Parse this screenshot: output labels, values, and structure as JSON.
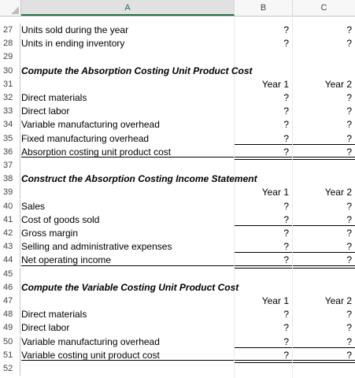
{
  "columns": {
    "a": "A",
    "b": "B",
    "c": "C"
  },
  "rows": [
    {
      "num": "27",
      "a": "Units sold during the year",
      "b": "?",
      "c": "?",
      "bold": false
    },
    {
      "num": "28",
      "a": "Units in ending inventory",
      "b": "?",
      "c": "?",
      "bold": false
    },
    {
      "num": "29",
      "a": "",
      "b": "",
      "c": "",
      "bold": false
    },
    {
      "num": "30",
      "a": "Compute the Absorption Costing Unit Product Cost",
      "b": "",
      "c": "",
      "bold": true
    },
    {
      "num": "31",
      "a": "",
      "b": "Year 1",
      "c": "Year 2",
      "bold": false
    },
    {
      "num": "32",
      "a": "Direct materials",
      "b": "?",
      "c": "?",
      "bold": false
    },
    {
      "num": "33",
      "a": "Direct labor",
      "b": "?",
      "c": "?",
      "bold": false
    },
    {
      "num": "34",
      "a": "Variable manufacturing overhead",
      "b": "?",
      "c": "?",
      "bold": false
    },
    {
      "num": "35",
      "a": "Fixed manufacturing overhead",
      "b": "?",
      "c": "?",
      "bold": false
    },
    {
      "num": "36",
      "a": "Absorption costing unit product cost",
      "b": "?",
      "c": "?",
      "bold": false
    },
    {
      "num": "37",
      "a": "",
      "b": "",
      "c": "",
      "bold": false
    },
    {
      "num": "38",
      "a": "Construct the Absorption Costing Income Statement",
      "b": "",
      "c": "",
      "bold": true
    },
    {
      "num": "39",
      "a": "",
      "b": "Year 1",
      "c": "Year 2",
      "bold": false
    },
    {
      "num": "40",
      "a": "Sales",
      "b": "?",
      "c": "?",
      "bold": false
    },
    {
      "num": "41",
      "a": "Cost of goods sold",
      "b": "?",
      "c": "?",
      "bold": false
    },
    {
      "num": "42",
      "a": "Gross margin",
      "b": "?",
      "c": "?",
      "bold": false
    },
    {
      "num": "43",
      "a": "Selling and administrative expenses",
      "b": "?",
      "c": "?",
      "bold": false
    },
    {
      "num": "44",
      "a": "Net operating income",
      "b": "?",
      "c": "?",
      "bold": false
    },
    {
      "num": "45",
      "a": "",
      "b": "",
      "c": "",
      "bold": false
    },
    {
      "num": "46",
      "a": "Compute the Variable Costing Unit Product Cost",
      "b": "",
      "c": "",
      "bold": true
    },
    {
      "num": "47",
      "a": "",
      "b": "Year 1",
      "c": "Year 2",
      "bold": false
    },
    {
      "num": "48",
      "a": "Direct materials",
      "b": "?",
      "c": "?",
      "bold": false
    },
    {
      "num": "49",
      "a": "Direct labor",
      "b": "?",
      "c": "?",
      "bold": false
    },
    {
      "num": "50",
      "a": "Variable manufacturing overhead",
      "b": "?",
      "c": "?",
      "bold": false
    },
    {
      "num": "51",
      "a": "Variable costing unit product cost",
      "b": "?",
      "c": "?",
      "bold": false
    },
    {
      "num": "52",
      "a": "",
      "b": "",
      "c": "",
      "bold": false
    }
  ]
}
